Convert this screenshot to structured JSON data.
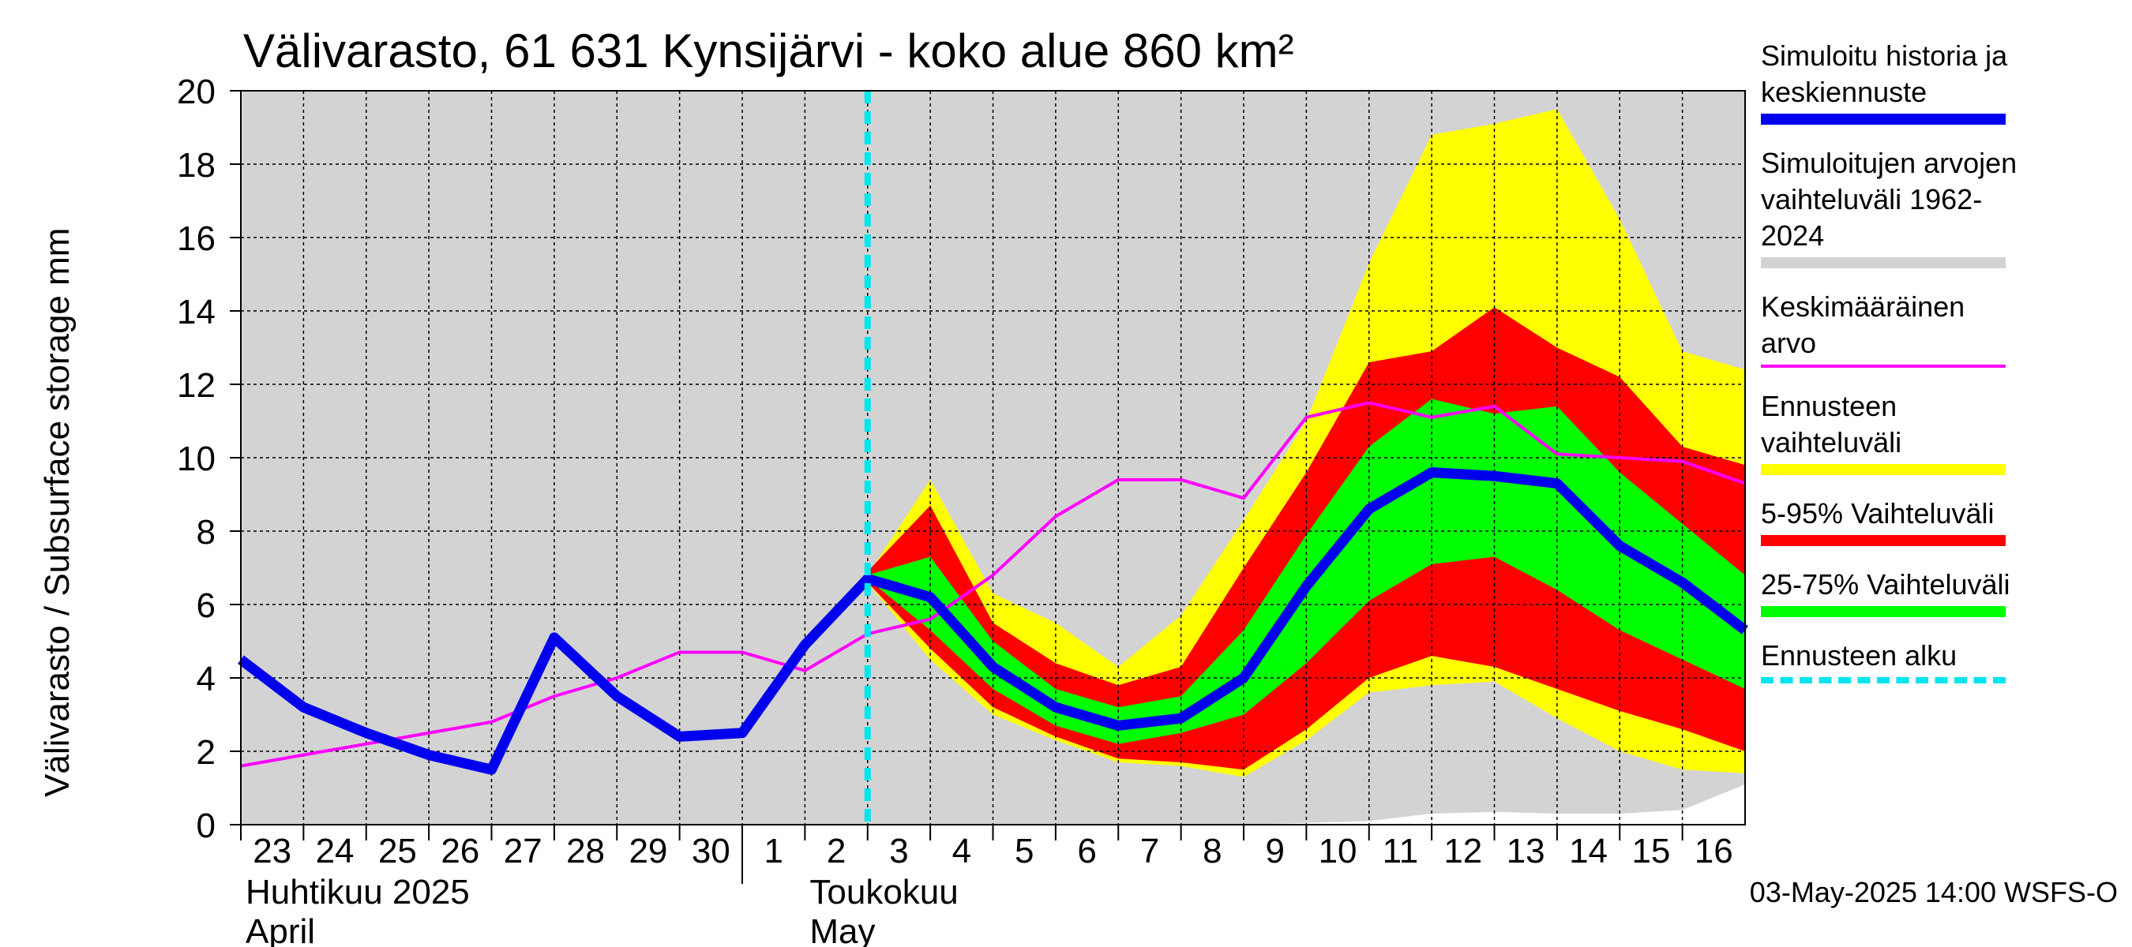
{
  "title": "Välivarasto, 61 631 Kynsijärvi - koko alue 860 km²",
  "footer": "03-May-2025 14:00 WSFS-O",
  "colors": {
    "history": "#0000ee",
    "range": "#d3d3d3",
    "mean": "#ff00ff",
    "forecast_range": "#ffff00",
    "p5_95": "#ff0000",
    "p25_75": "#00ff00",
    "forecast_start": "#00e5ee"
  },
  "legend": [
    {
      "id": "history",
      "text": "Simuloitu historia ja keskiennuste",
      "color": "#0000ee",
      "style": "solid"
    },
    {
      "id": "range",
      "text": "Simuloitujen arvojen vaihteluväli 1962-2024",
      "color": "#d3d3d3",
      "style": "solid"
    },
    {
      "id": "mean",
      "text": "Keskimääräinen arvo",
      "color": "#ff00ff",
      "style": "thin"
    },
    {
      "id": "forecast_range",
      "text": "Ennusteen vaihteluväli",
      "color": "#ffff00",
      "style": "solid"
    },
    {
      "id": "p5_95",
      "text": "5-95% Vaihteluväli",
      "color": "#ff0000",
      "style": "solid"
    },
    {
      "id": "p25_75",
      "text": "25-75% Vaihteluväli",
      "color": "#00ff00",
      "style": "solid"
    },
    {
      "id": "forecast_start",
      "text": "Ennusteen alku",
      "color": "#00e5ee",
      "style": "dashed"
    }
  ],
  "chart_data": {
    "type": "area",
    "ylabel": "Välivarasto / Subsurface storage  mm",
    "ylim": [
      0,
      20
    ],
    "yticks": [
      0,
      2,
      4,
      6,
      8,
      10,
      12,
      14,
      16,
      18,
      20
    ],
    "xlim": [
      -10,
      14
    ],
    "x_tick_labels": [
      "23",
      "24",
      "25",
      "26",
      "27",
      "28",
      "29",
      "30",
      "1",
      "2",
      "3",
      "4",
      "5",
      "6",
      "7",
      "8",
      "9",
      "10",
      "11",
      "12",
      "13",
      "14",
      "15",
      "16"
    ],
    "month_labels": [
      {
        "line1": "Huhtikuu  2025",
        "line2": "April",
        "start_index": 0
      },
      {
        "line1": "Toukokuu",
        "line2": "May",
        "start_index": 9
      }
    ],
    "month_divider_index": 8,
    "forecast_start_x": 0,
    "grid": true,
    "range_band": {
      "x": [
        -10,
        -9,
        -8,
        -7,
        -6,
        -5,
        -4,
        -3,
        -2,
        -1,
        0,
        1,
        2,
        3,
        4,
        5,
        6,
        7,
        8,
        9,
        10,
        11,
        12,
        13,
        14
      ],
      "lower": [
        0,
        0,
        0,
        0,
        0,
        0,
        0,
        0,
        0,
        0,
        0,
        0,
        0,
        0,
        0,
        0,
        0,
        0.05,
        0.1,
        0.3,
        0.35,
        0.3,
        0.3,
        0.4,
        1.1
      ],
      "upper": [
        20,
        20,
        20,
        20,
        20,
        20,
        20,
        20,
        20,
        20,
        20,
        20,
        20,
        20,
        20,
        20,
        20,
        20,
        20,
        20,
        20,
        20,
        20,
        20,
        20
      ]
    },
    "forecast_x": [
      0,
      1,
      2,
      3,
      4,
      5,
      6,
      7,
      8,
      9,
      10,
      11,
      12,
      13,
      14
    ],
    "forecast_range": {
      "lower": [
        6.6,
        4.5,
        3.0,
        2.3,
        1.7,
        1.6,
        1.3,
        2.3,
        3.6,
        3.8,
        3.9,
        2.9,
        2.0,
        1.5,
        1.4
      ],
      "upper": [
        6.8,
        9.4,
        6.3,
        5.5,
        4.3,
        5.7,
        8.3,
        11.0,
        15.3,
        18.8,
        19.1,
        19.5,
        16.5,
        12.9,
        12.4
      ]
    },
    "p5_95": {
      "lower": [
        6.6,
        4.8,
        3.2,
        2.4,
        1.8,
        1.7,
        1.5,
        2.6,
        4.0,
        4.6,
        4.3,
        3.7,
        3.1,
        2.6,
        2.0
      ],
      "upper": [
        6.9,
        8.7,
        5.5,
        4.4,
        3.8,
        4.3,
        7.0,
        9.6,
        12.6,
        12.9,
        14.1,
        13.0,
        12.2,
        10.3,
        9.8
      ]
    },
    "p25_75": {
      "lower": [
        6.7,
        5.3,
        3.7,
        2.7,
        2.2,
        2.5,
        3.0,
        4.4,
        6.1,
        7.1,
        7.3,
        6.4,
        5.3,
        4.5,
        3.7
      ],
      "upper": [
        6.8,
        7.3,
        5.0,
        3.7,
        3.2,
        3.5,
        5.3,
        7.9,
        10.3,
        11.6,
        11.2,
        11.4,
        9.6,
        8.2,
        6.8
      ]
    },
    "series": [
      {
        "id": "history",
        "name": "Simuloitu historia ja keskiennuste",
        "x": [
          -10,
          -9,
          -8,
          -7,
          -6,
          -5,
          -4,
          -3,
          -2,
          -1,
          0,
          1,
          2,
          3,
          4,
          5,
          6,
          7,
          8,
          9,
          10,
          11,
          12,
          13,
          14
        ],
        "values": [
          4.5,
          3.2,
          2.5,
          1.9,
          1.5,
          5.1,
          3.5,
          2.4,
          2.5,
          4.9,
          6.7,
          6.2,
          4.3,
          3.2,
          2.7,
          2.9,
          4.0,
          6.5,
          8.6,
          9.6,
          9.5,
          9.3,
          7.6,
          6.6,
          5.3
        ]
      },
      {
        "id": "mean",
        "name": "Keskimääräinen arvo",
        "x": [
          -10,
          -9,
          -8,
          -7,
          -6,
          -5,
          -4,
          -3,
          -2,
          -1,
          0,
          1,
          2,
          3,
          4,
          5,
          6,
          7,
          8,
          9,
          10,
          11,
          12,
          13,
          14
        ],
        "values": [
          1.6,
          1.9,
          2.2,
          2.5,
          2.8,
          3.5,
          4.0,
          4.7,
          4.7,
          4.2,
          5.2,
          5.6,
          6.8,
          8.4,
          9.4,
          9.4,
          8.9,
          11.1,
          11.5,
          11.1,
          11.4,
          10.1,
          10.0,
          9.9,
          9.3
        ]
      }
    ]
  }
}
